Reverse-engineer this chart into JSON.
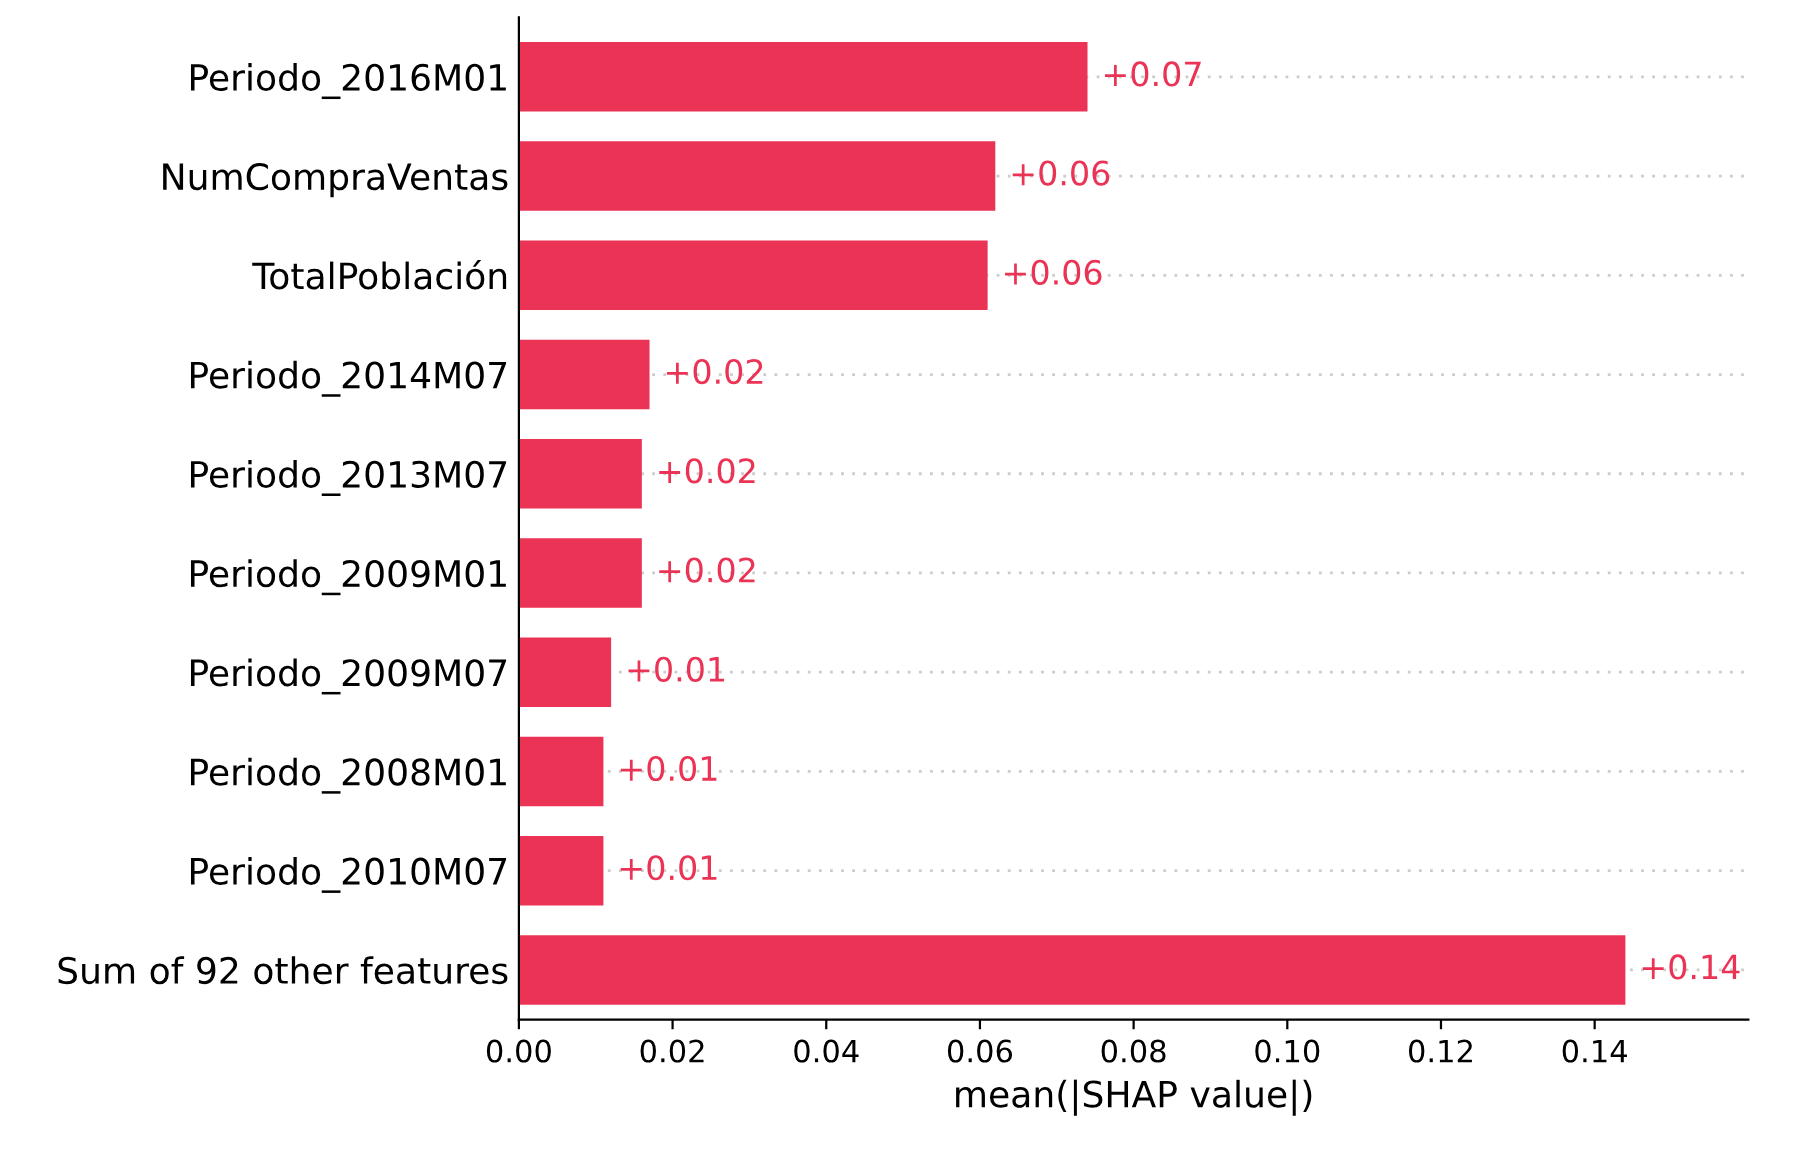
{
  "chart_data": {
    "type": "bar",
    "orientation": "horizontal",
    "categories": [
      "Periodo_2016M01",
      "NumCompraVentas",
      "TotalPoblación",
      "Periodo_2014M07",
      "Periodo_2013M07",
      "Periodo_2009M01",
      "Periodo_2009M07",
      "Periodo_2008M01",
      "Periodo_2010M07",
      "Sum of 92 other features"
    ],
    "values": [
      0.074,
      0.062,
      0.061,
      0.017,
      0.016,
      0.016,
      0.012,
      0.011,
      0.011,
      0.144
    ],
    "value_labels": [
      "+0.07",
      "+0.06",
      "+0.06",
      "+0.02",
      "+0.02",
      "+0.02",
      "+0.01",
      "+0.01",
      "+0.01",
      "+0.14"
    ],
    "color": "#eb3355",
    "xlabel": "mean(|SHAP value|)",
    "xlim": [
      0,
      0.16
    ],
    "xticks": [
      {
        "value": 0,
        "label": "0.00"
      },
      {
        "value": 0.02,
        "label": "0.02"
      },
      {
        "value": 0.04,
        "label": "0.04"
      },
      {
        "value": 0.06,
        "label": "0.06"
      },
      {
        "value": 0.08,
        "label": "0.08"
      },
      {
        "value": 0.1,
        "label": "0.10"
      },
      {
        "value": 0.12,
        "label": "0.12"
      },
      {
        "value": 0.14,
        "label": "0.14"
      }
    ],
    "grid": "y",
    "legend": false
  }
}
